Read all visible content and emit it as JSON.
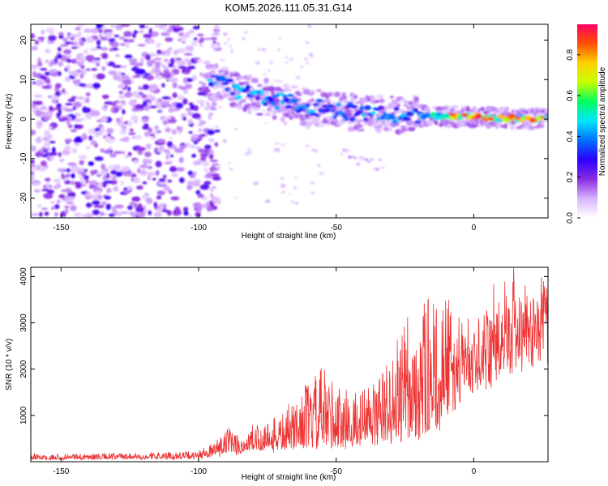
{
  "title": "KOM5.2026.111.05.31.G14",
  "chart_data": [
    {
      "type": "heatmap",
      "name": "spectrogram",
      "xlabel": "Height of straight line (km)",
      "ylabel": "Frequency (Hz)",
      "xlim": [
        -161,
        27
      ],
      "ylim": [
        -25,
        24
      ],
      "xticks": [
        -150,
        -100,
        -50,
        0
      ],
      "yticks": [
        -20,
        -10,
        0,
        10,
        20
      ],
      "colorbar": {
        "label": "Normalized spectral amplitude",
        "range": [
          0,
          0.95
        ],
        "ticks": [
          0.0,
          0.2,
          0.4,
          0.6,
          0.8
        ],
        "colormap": [
          "#ffffff",
          "#d9b3ff",
          "#8a2be2",
          "#2e00ff",
          "#0070ff",
          "#00e5ff",
          "#00ff60",
          "#c8ff00",
          "#ffd000",
          "#ff5000",
          "#ff0066"
        ]
      },
      "ridge": {
        "description_points_x": [
          -95,
          -80,
          -60,
          -40,
          -20,
          0,
          27
        ],
        "description_points_f": [
          10,
          6,
          3,
          1.5,
          1,
          0.5,
          0
        ],
        "noise_region_x": [
          -161,
          -93
        ]
      }
    },
    {
      "type": "line",
      "name": "snr",
      "xlabel": "Height of straight line (km)",
      "ylabel": "SNR (10 * v/v)",
      "xlim": [
        -161,
        27
      ],
      "ylim": [
        0,
        4200
      ],
      "xticks": [
        -150,
        -100,
        -50,
        0
      ],
      "yticks": [
        1000,
        2000,
        3000,
        4000
      ],
      "color": "#ee3333",
      "envelope": {
        "x": [
          -161,
          -120,
          -100,
          -95,
          -90,
          -85,
          -80,
          -70,
          -60,
          -55,
          -50,
          -45,
          -40,
          -35,
          -30,
          -25,
          -20,
          -15,
          -10,
          -5,
          0,
          5,
          10,
          15,
          20,
          27
        ],
        "base": [
          60,
          70,
          90,
          130,
          180,
          200,
          260,
          320,
          420,
          420,
          480,
          420,
          500,
          540,
          620,
          650,
          700,
          700,
          1400,
          1900,
          2300,
          2300,
          2800,
          3000,
          3100,
          3500
        ],
        "peak": [
          180,
          200,
          240,
          420,
          800,
          600,
          900,
          1100,
          1800,
          2100,
          1900,
          1500,
          1600,
          2000,
          2400,
          3100,
          3800,
          3600,
          3500,
          3200,
          3200,
          3600,
          4200,
          4100,
          3900,
          3950
        ]
      }
    }
  ]
}
